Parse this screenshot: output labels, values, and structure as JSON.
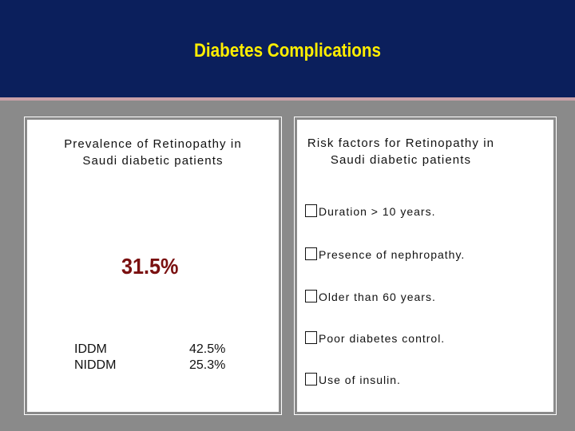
{
  "header": {
    "title": "Diabetes Complications"
  },
  "left_panel": {
    "title_line1": "Prevalence of Retinopathy in",
    "title_line2": "Saudi diabetic patients",
    "overall_value": "31.5%",
    "rows": [
      {
        "label": "IDDM",
        "value": "42.5%"
      },
      {
        "label": "NIDDM",
        "value": "25.3%"
      }
    ]
  },
  "right_panel": {
    "title_line1": "Risk factors for Retinopathy in",
    "title_line2": "Saudi diabetic patients",
    "bullet_glyph": "square-bullet-icon",
    "bullets": [
      "Duration > 10 years.",
      "Presence of nephropathy.",
      "Older than 60 years.",
      "Poor diabetes control.",
      "Use of insulin."
    ]
  },
  "colors": {
    "header_bg": "#0b1f5c",
    "title": "#ffee00",
    "highlight": "#7a1010",
    "page_bg": "#8a8a8a"
  }
}
